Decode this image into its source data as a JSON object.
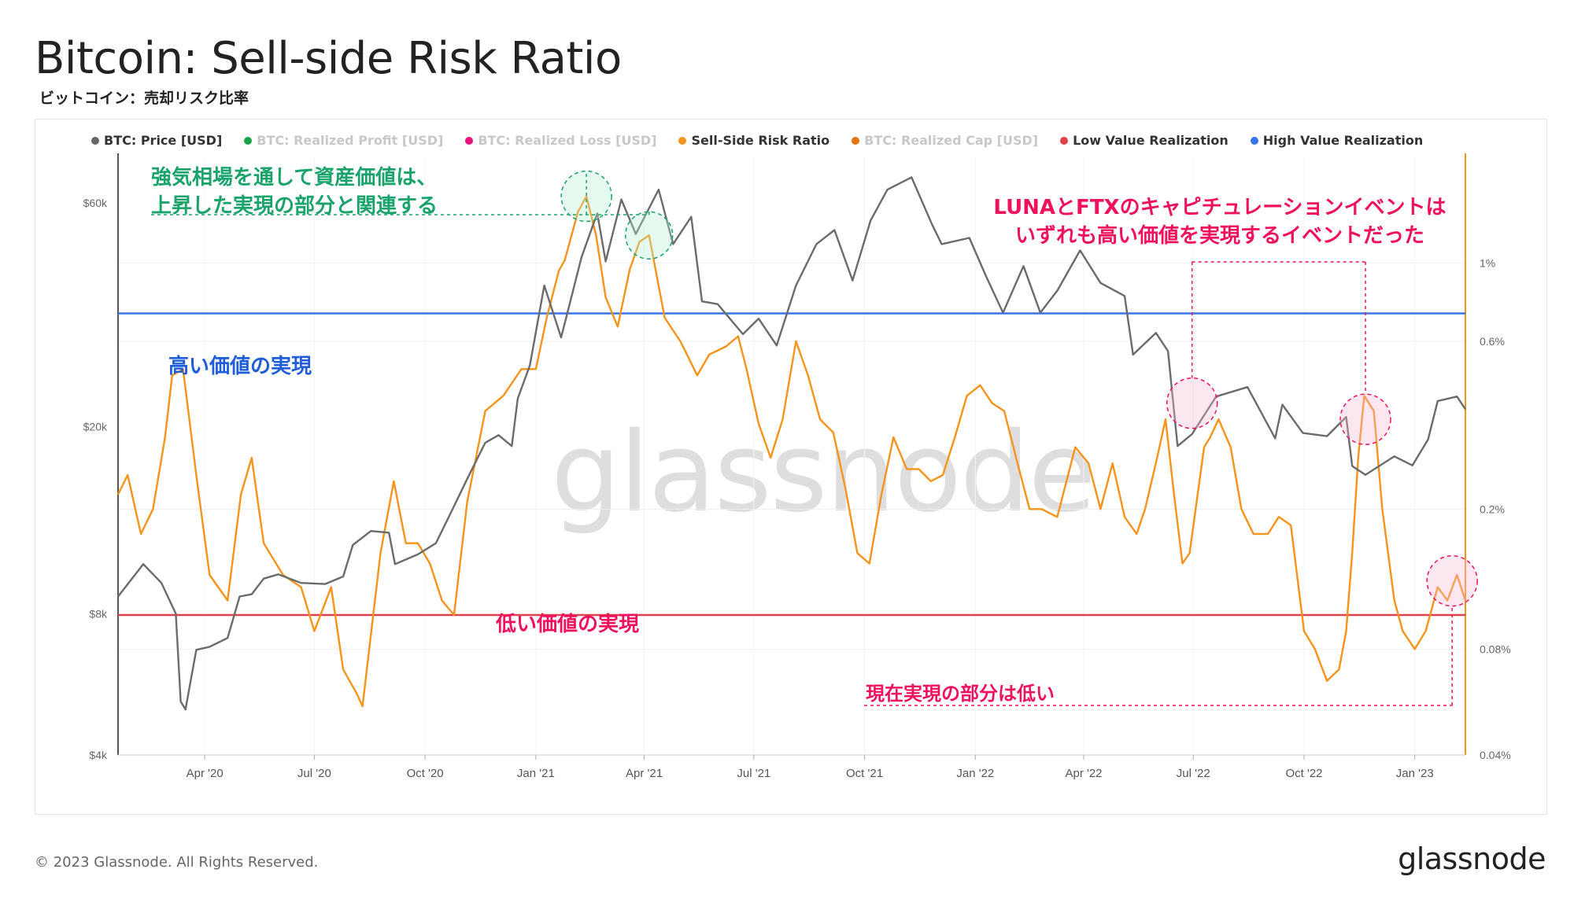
{
  "header": {
    "title": "Bitcoin: Sell-side Risk Ratio",
    "subtitle": "ビットコイン：売却リスク比率"
  },
  "legend": [
    {
      "label": "BTC: Price [USD]",
      "color": "#666666",
      "active": true
    },
    {
      "label": "BTC: Realized Profit [USD]",
      "color": "#1aa34a",
      "active": false
    },
    {
      "label": "BTC: Realized Loss [USD]",
      "color": "#e8167c",
      "active": false
    },
    {
      "label": "Sell-Side Risk Ratio",
      "color": "#f7931a",
      "active": true
    },
    {
      "label": "BTC: Realized Cap [USD]",
      "color": "#e8720c",
      "active": false
    },
    {
      "label": "Low Value Realization",
      "color": "#e0424d",
      "active": true
    },
    {
      "label": "High Value Realization",
      "color": "#3874e8",
      "active": true
    }
  ],
  "annotations": {
    "green_line1": "強気相場を通して資産価値は、",
    "green_line2": "上昇した実現の部分と関連する",
    "red_line1": "LUNAとFTXのキャピチュレーションイベントは",
    "red_line2": "いずれも高い価値を実現するイベントだった",
    "high_value": "高い価値の実現",
    "low_value": "低い価値の実現",
    "current": "現在実現の部分は低い"
  },
  "watermark": "glassnode",
  "footer": {
    "copyright": "© 2023 Glassnode. All Rights Reserved.",
    "brand": "glassnode"
  },
  "colors": {
    "price": "#6b6b6b",
    "ratio": "#f7931a",
    "low": "#e0424d",
    "high": "#3874e8",
    "green": "#1aa36b",
    "pink": "#f0115d"
  },
  "chart_data": {
    "type": "line",
    "x_ticks": [
      "Apr '20",
      "Jul '20",
      "Oct '20",
      "Jan '21",
      "Apr '21",
      "Jul '21",
      "Oct '21",
      "Jan '22",
      "Apr '22",
      "Jul '22",
      "Oct '22",
      "Jan '23"
    ],
    "y_left": {
      "scale": "log",
      "range": [
        4000,
        75000
      ],
      "ticks": [
        4000,
        8000,
        20000,
        60000
      ],
      "tick_labels": [
        "$4k",
        "$8k",
        "$20k",
        "$60k"
      ]
    },
    "y_right": {
      "scale": "log",
      "range": [
        0.04,
        2.0
      ],
      "ticks": [
        0.04,
        0.08,
        0.2,
        0.6,
        1.0
      ],
      "tick_labels": [
        "0.04%",
        "0.08%",
        "0.2%",
        "0.6%",
        "1%"
      ]
    },
    "high_value_realization": 0.72,
    "low_value_realization": 0.1,
    "series": [
      {
        "name": "BTC: Price [USD]",
        "axis": "left",
        "points": [
          [
            "2020-01-20",
            8700
          ],
          [
            "2020-02-10",
            10200
          ],
          [
            "2020-02-25",
            9300
          ],
          [
            "2020-03-08",
            8000
          ],
          [
            "2020-03-12",
            5200
          ],
          [
            "2020-03-16",
            5000
          ],
          [
            "2020-03-25",
            6700
          ],
          [
            "2020-04-05",
            6800
          ],
          [
            "2020-04-20",
            7100
          ],
          [
            "2020-04-30",
            8700
          ],
          [
            "2020-05-10",
            8800
          ],
          [
            "2020-05-20",
            9500
          ],
          [
            "2020-06-01",
            9700
          ],
          [
            "2020-06-20",
            9300
          ],
          [
            "2020-07-10",
            9250
          ],
          [
            "2020-07-25",
            9600
          ],
          [
            "2020-08-02",
            11200
          ],
          [
            "2020-08-17",
            12000
          ],
          [
            "2020-09-01",
            11900
          ],
          [
            "2020-09-06",
            10200
          ],
          [
            "2020-09-25",
            10700
          ],
          [
            "2020-10-10",
            11300
          ],
          [
            "2020-10-21",
            12900
          ],
          [
            "2020-11-05",
            15500
          ],
          [
            "2020-11-20",
            18500
          ],
          [
            "2020-12-01",
            19200
          ],
          [
            "2020-12-12",
            18200
          ],
          [
            "2020-12-17",
            23000
          ],
          [
            "2020-12-27",
            27000
          ],
          [
            "2021-01-08",
            40000
          ],
          [
            "2021-01-22",
            31000
          ],
          [
            "2021-02-08",
            46000
          ],
          [
            "2021-02-21",
            57000
          ],
          [
            "2021-02-28",
            45000
          ],
          [
            "2021-03-13",
            61000
          ],
          [
            "2021-03-25",
            51500
          ],
          [
            "2021-04-13",
            64000
          ],
          [
            "2021-04-25",
            49000
          ],
          [
            "2021-05-10",
            56000
          ],
          [
            "2021-05-19",
            37000
          ],
          [
            "2021-06-01",
            36500
          ],
          [
            "2021-06-22",
            31500
          ],
          [
            "2021-07-05",
            34000
          ],
          [
            "2021-07-20",
            29800
          ],
          [
            "2021-08-05",
            40000
          ],
          [
            "2021-08-22",
            49000
          ],
          [
            "2021-09-06",
            52500
          ],
          [
            "2021-09-21",
            41000
          ],
          [
            "2021-10-06",
            55000
          ],
          [
            "2021-10-20",
            64000
          ],
          [
            "2021-11-09",
            68000
          ],
          [
            "2021-11-26",
            54000
          ],
          [
            "2021-12-04",
            49000
          ],
          [
            "2021-12-27",
            50500
          ],
          [
            "2022-01-10",
            41800
          ],
          [
            "2022-01-24",
            35000
          ],
          [
            "2022-02-10",
            44000
          ],
          [
            "2022-02-24",
            35000
          ],
          [
            "2022-03-10",
            39000
          ],
          [
            "2022-03-29",
            47500
          ],
          [
            "2022-04-15",
            40500
          ],
          [
            "2022-05-05",
            38000
          ],
          [
            "2022-05-12",
            28500
          ],
          [
            "2022-05-31",
            31700
          ],
          [
            "2022-06-10",
            29000
          ],
          [
            "2022-06-18",
            18200
          ],
          [
            "2022-06-30",
            19300
          ],
          [
            "2022-07-20",
            23200
          ],
          [
            "2022-08-15",
            24300
          ],
          [
            "2022-09-07",
            18900
          ],
          [
            "2022-09-13",
            22300
          ],
          [
            "2022-09-30",
            19400
          ],
          [
            "2022-10-20",
            19100
          ],
          [
            "2022-11-05",
            21000
          ],
          [
            "2022-11-10",
            16500
          ],
          [
            "2022-11-21",
            15800
          ],
          [
            "2022-12-15",
            17300
          ],
          [
            "2022-12-30",
            16550
          ],
          [
            "2023-01-12",
            18800
          ],
          [
            "2023-01-20",
            22700
          ],
          [
            "2023-02-05",
            23200
          ],
          [
            "2023-02-12",
            21800
          ]
        ]
      },
      {
        "name": "Sell-Side Risk Ratio",
        "axis": "right",
        "points": [
          [
            "2020-01-20",
            0.22
          ],
          [
            "2020-01-28",
            0.25
          ],
          [
            "2020-02-08",
            0.17
          ],
          [
            "2020-02-18",
            0.2
          ],
          [
            "2020-02-28",
            0.32
          ],
          [
            "2020-03-05",
            0.48
          ],
          [
            "2020-03-14",
            0.5
          ],
          [
            "2020-03-25",
            0.25
          ],
          [
            "2020-04-05",
            0.13
          ],
          [
            "2020-04-20",
            0.11
          ],
          [
            "2020-05-01",
            0.22
          ],
          [
            "2020-05-10",
            0.28
          ],
          [
            "2020-05-20",
            0.16
          ],
          [
            "2020-06-05",
            0.13
          ],
          [
            "2020-06-20",
            0.12
          ],
          [
            "2020-07-01",
            0.09
          ],
          [
            "2020-07-15",
            0.12
          ],
          [
            "2020-07-25",
            0.07
          ],
          [
            "2020-08-05",
            0.06
          ],
          [
            "2020-08-10",
            0.055
          ],
          [
            "2020-08-25",
            0.15
          ],
          [
            "2020-09-05",
            0.24
          ],
          [
            "2020-09-15",
            0.16
          ],
          [
            "2020-09-25",
            0.16
          ],
          [
            "2020-10-05",
            0.14
          ],
          [
            "2020-10-15",
            0.11
          ],
          [
            "2020-10-25",
            0.1
          ],
          [
            "2020-11-05",
            0.21
          ],
          [
            "2020-11-20",
            0.38
          ],
          [
            "2020-12-05",
            0.42
          ],
          [
            "2020-12-20",
            0.5
          ],
          [
            "2021-01-01",
            0.5
          ],
          [
            "2021-01-10",
            0.7
          ],
          [
            "2021-01-20",
            0.95
          ],
          [
            "2021-01-25",
            1.02
          ],
          [
            "2021-02-05",
            1.4
          ],
          [
            "2021-02-12",
            1.55
          ],
          [
            "2021-02-20",
            1.2
          ],
          [
            "2021-02-28",
            0.8
          ],
          [
            "2021-03-10",
            0.66
          ],
          [
            "2021-03-20",
            0.96
          ],
          [
            "2021-03-28",
            1.15
          ],
          [
            "2021-04-05",
            1.2
          ],
          [
            "2021-04-18",
            0.7
          ],
          [
            "2021-05-01",
            0.6
          ],
          [
            "2021-05-15",
            0.48
          ],
          [
            "2021-05-25",
            0.55
          ],
          [
            "2021-06-08",
            0.58
          ],
          [
            "2021-06-18",
            0.62
          ],
          [
            "2021-06-25",
            0.5
          ],
          [
            "2021-07-05",
            0.35
          ],
          [
            "2021-07-15",
            0.28
          ],
          [
            "2021-07-25",
            0.36
          ],
          [
            "2021-08-05",
            0.6
          ],
          [
            "2021-08-15",
            0.48
          ],
          [
            "2021-08-25",
            0.36
          ],
          [
            "2021-09-05",
            0.33
          ],
          [
            "2021-09-15",
            0.23
          ],
          [
            "2021-09-25",
            0.15
          ],
          [
            "2021-10-05",
            0.14
          ],
          [
            "2021-10-15",
            0.22
          ],
          [
            "2021-10-25",
            0.32
          ],
          [
            "2021-11-05",
            0.26
          ],
          [
            "2021-11-15",
            0.26
          ],
          [
            "2021-11-25",
            0.24
          ],
          [
            "2021-12-05",
            0.25
          ],
          [
            "2021-12-15",
            0.32
          ],
          [
            "2021-12-25",
            0.42
          ],
          [
            "2022-01-05",
            0.45
          ],
          [
            "2022-01-15",
            0.4
          ],
          [
            "2022-01-25",
            0.38
          ],
          [
            "2022-02-05",
            0.27
          ],
          [
            "2022-02-15",
            0.2
          ],
          [
            "2022-02-25",
            0.2
          ],
          [
            "2022-03-10",
            0.19
          ],
          [
            "2022-03-25",
            0.3
          ],
          [
            "2022-04-05",
            0.27
          ],
          [
            "2022-04-15",
            0.2
          ],
          [
            "2022-04-25",
            0.27
          ],
          [
            "2022-05-05",
            0.19
          ],
          [
            "2022-05-15",
            0.17
          ],
          [
            "2022-05-22",
            0.2
          ],
          [
            "2022-06-01",
            0.28
          ],
          [
            "2022-06-08",
            0.36
          ],
          [
            "2022-06-15",
            0.22
          ],
          [
            "2022-06-22",
            0.14
          ],
          [
            "2022-06-28",
            0.15
          ],
          [
            "2022-07-10",
            0.3
          ],
          [
            "2022-07-15",
            0.32
          ],
          [
            "2022-07-22",
            0.36
          ],
          [
            "2022-08-01",
            0.3
          ],
          [
            "2022-08-10",
            0.2
          ],
          [
            "2022-08-20",
            0.17
          ],
          [
            "2022-09-01",
            0.17
          ],
          [
            "2022-09-10",
            0.19
          ],
          [
            "2022-09-20",
            0.18
          ],
          [
            "2022-10-01",
            0.09
          ],
          [
            "2022-10-10",
            0.08
          ],
          [
            "2022-10-20",
            0.065
          ],
          [
            "2022-10-30",
            0.07
          ],
          [
            "2022-11-05",
            0.09
          ],
          [
            "2022-11-10",
            0.15
          ],
          [
            "2022-11-15",
            0.28
          ],
          [
            "2022-11-20",
            0.42
          ],
          [
            "2022-11-28",
            0.38
          ],
          [
            "2022-12-05",
            0.2
          ],
          [
            "2022-12-15",
            0.11
          ],
          [
            "2022-12-22",
            0.09
          ],
          [
            "2023-01-01",
            0.08
          ],
          [
            "2023-01-10",
            0.09
          ],
          [
            "2023-01-20",
            0.12
          ],
          [
            "2023-01-28",
            0.11
          ],
          [
            "2023-02-05",
            0.13
          ],
          [
            "2023-02-12",
            0.11
          ]
        ]
      }
    ]
  }
}
